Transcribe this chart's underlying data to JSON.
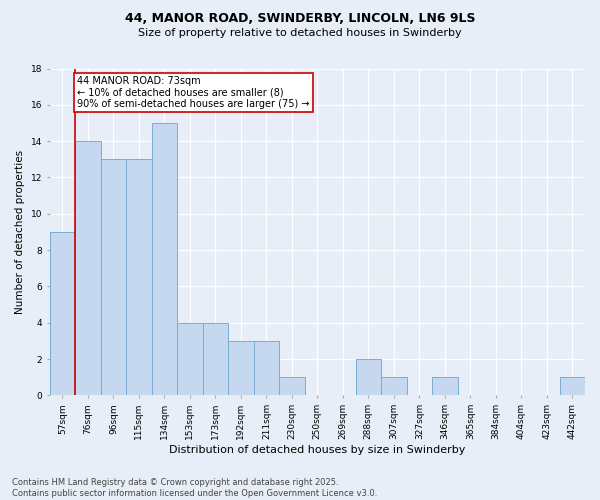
{
  "title_line1": "44, MANOR ROAD, SWINDERBY, LINCOLN, LN6 9LS",
  "title_line2": "Size of property relative to detached houses in Swinderby",
  "xlabel": "Distribution of detached houses by size in Swinderby",
  "ylabel": "Number of detached properties",
  "categories": [
    "57sqm",
    "76sqm",
    "96sqm",
    "115sqm",
    "134sqm",
    "153sqm",
    "173sqm",
    "192sqm",
    "211sqm",
    "230sqm",
    "250sqm",
    "269sqm",
    "288sqm",
    "307sqm",
    "327sqm",
    "346sqm",
    "365sqm",
    "384sqm",
    "404sqm",
    "423sqm",
    "442sqm"
  ],
  "values": [
    9,
    14,
    13,
    13,
    15,
    4,
    4,
    3,
    3,
    1,
    0,
    0,
    2,
    1,
    0,
    1,
    0,
    0,
    0,
    0,
    1
  ],
  "bar_color": "#c5d8ef",
  "bar_edge_color": "#7aadd4",
  "annotation_text": "44 MANOR ROAD: 73sqm\n← 10% of detached houses are smaller (8)\n90% of semi-detached houses are larger (75) →",
  "annotation_box_color": "#ffffff",
  "annotation_box_edge": "#cc0000",
  "ylim": [
    0,
    18
  ],
  "yticks": [
    0,
    2,
    4,
    6,
    8,
    10,
    12,
    14,
    16,
    18
  ],
  "footer_line1": "Contains HM Land Registry data © Crown copyright and database right 2025.",
  "footer_line2": "Contains public sector information licensed under the Open Government Licence v3.0.",
  "bg_color": "#e8eef7",
  "plot_bg_color": "#e8eef7",
  "grid_color": "#ffffff",
  "redline_color": "#cc0000",
  "title1_fontsize": 9,
  "title2_fontsize": 8,
  "xlabel_fontsize": 8,
  "ylabel_fontsize": 7.5,
  "tick_fontsize": 6.5,
  "footer_fontsize": 6,
  "annotation_fontsize": 7
}
